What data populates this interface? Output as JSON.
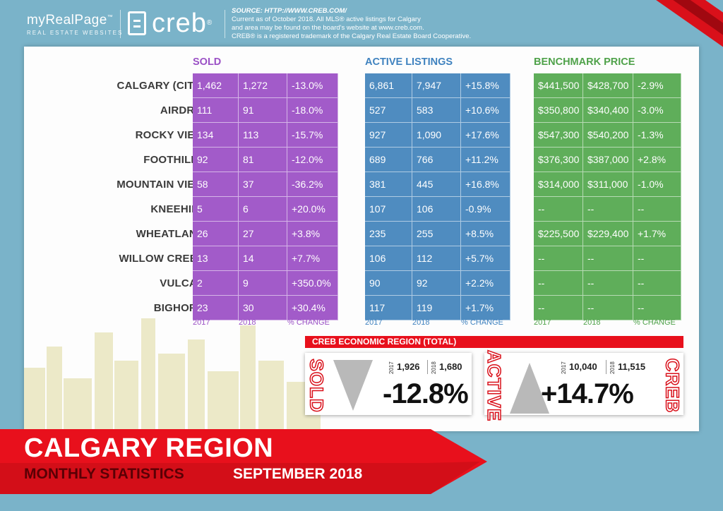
{
  "header": {
    "brand_name": "myRealPage",
    "brand_tm": "™",
    "brand_tagline": "REAL ESTATE WEBSITES",
    "creb_word": "creb",
    "creb_reg": "®",
    "source_title": "SOURCE: HTTP://WWW.CREB.COM/",
    "source_lines": [
      "Current as of October 2018.  All MLS® active listings for Calgary",
      "and area may be found on the board's website at www.creb.com.",
      "CREB® is a registered trademark of the Calgary Real Estate Board Cooperative."
    ]
  },
  "colors": {
    "sold": "#a25bc9",
    "active": "#4f8cc0",
    "benchmark": "#5fae5a",
    "sold_title": "#9b51c6",
    "active_title": "#3f82bf",
    "benchmark_title": "#4fa24a",
    "red": "#e8101c"
  },
  "chart_data": {
    "type": "table",
    "regions": [
      "CALGARY (CITY)",
      "AIRDRIE",
      "ROCKY VIEW",
      "FOOTHILLS",
      "MOUNTAIN VIEW",
      "KNEEHILL",
      "WHEATLAND",
      "WILLOW CREEK",
      "VULCAN",
      "BIGHORN"
    ],
    "groups": [
      {
        "title": "SOLD",
        "columns": [
          "2017",
          "2018",
          "% CHANGE"
        ],
        "rows": [
          [
            "1,462",
            "1,272",
            "-13.0%"
          ],
          [
            "111",
            "91",
            "-18.0%"
          ],
          [
            "134",
            "113",
            "-15.7%"
          ],
          [
            "92",
            "81",
            "-12.0%"
          ],
          [
            "58",
            "37",
            "-36.2%"
          ],
          [
            "5",
            "6",
            "+20.0%"
          ],
          [
            "26",
            "27",
            "+3.8%"
          ],
          [
            "13",
            "14",
            "+7.7%"
          ],
          [
            "2",
            "9",
            "+350.0%"
          ],
          [
            "23",
            "30",
            "+30.4%"
          ]
        ]
      },
      {
        "title": "ACTIVE LISTINGS",
        "columns": [
          "2017",
          "2018",
          "% CHANGE"
        ],
        "rows": [
          [
            "6,861",
            "7,947",
            "+15.8%"
          ],
          [
            "527",
            "583",
            "+10.6%"
          ],
          [
            "927",
            "1,090",
            "+17.6%"
          ],
          [
            "689",
            "766",
            "+11.2%"
          ],
          [
            "381",
            "445",
            "+16.8%"
          ],
          [
            "107",
            "106",
            "-0.9%"
          ],
          [
            "235",
            "255",
            "+8.5%"
          ],
          [
            "106",
            "112",
            "+5.7%"
          ],
          [
            "90",
            "92",
            "+2.2%"
          ],
          [
            "117",
            "119",
            "+1.7%"
          ]
        ]
      },
      {
        "title": "BENCHMARK PRICE",
        "columns": [
          "2017",
          "2018",
          "% CHANGE"
        ],
        "rows": [
          [
            "$441,500",
            "$428,700",
            "-2.9%"
          ],
          [
            "$350,800",
            "$340,400",
            "-3.0%"
          ],
          [
            "$547,300",
            "$540,200",
            "-1.3%"
          ],
          [
            "$376,300",
            "$387,000",
            "+2.8%"
          ],
          [
            "$314,000",
            "$311,000",
            "-1.0%"
          ],
          [
            "--",
            "--",
            "--"
          ],
          [
            "$225,500",
            "$229,400",
            "+1.7%"
          ],
          [
            "--",
            "--",
            "--"
          ],
          [
            "--",
            "--",
            "--"
          ],
          [
            "--",
            "--",
            "--"
          ]
        ]
      }
    ],
    "economic_region": {
      "title": "CREB ECONOMIC REGION (TOTAL)",
      "sold": {
        "label": "SOLD",
        "year_a": "2017",
        "value_a": "1,926",
        "year_b": "2018",
        "value_b": "1,680",
        "change": "-12.8%",
        "direction": "down"
      },
      "active": {
        "label": "ACTIVE",
        "year_a": "2017",
        "value_a": "10,040",
        "year_b": "2018",
        "value_b": "11,515",
        "change": "+14.7%",
        "direction": "up"
      },
      "creb_label": "CREB"
    }
  },
  "banner": {
    "title": "CALGARY REGION",
    "subtitle": "MONTHLY STATISTICS",
    "date": "SEPTEMBER 2018"
  }
}
